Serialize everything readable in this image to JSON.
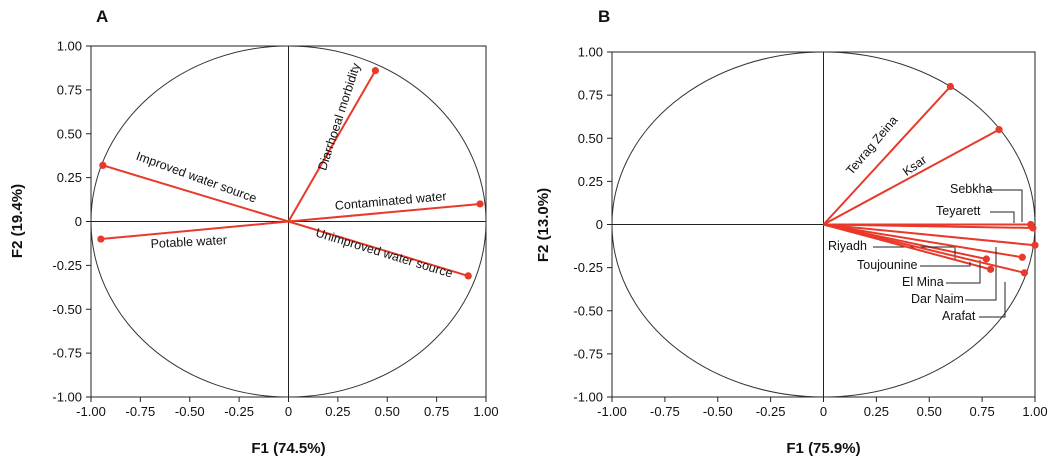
{
  "colors": {
    "vector": "#e8392b",
    "axis": "#222222",
    "circle": "#333333"
  },
  "chart_data": [
    {
      "type": "scatter",
      "panel": "A",
      "xlabel": "F1 (74.5%)",
      "ylabel": "F2 (19.4%)",
      "xlim": [
        -1,
        1
      ],
      "ylim": [
        -1,
        1
      ],
      "xticks": [
        "-1.00",
        "-0.75",
        "-0.50",
        "-0.25",
        "0",
        "0.25",
        "0.50",
        "0.75",
        "1.00"
      ],
      "yticks": [
        "1.00",
        "0.75",
        "0.50",
        "0.25",
        "0",
        "-0.25",
        "-0.50",
        "-0.75",
        "-1.00"
      ],
      "correlation_circle": true,
      "vectors": [
        {
          "label": "Diarrhoeal morbidity",
          "x": 0.44,
          "y": 0.86
        },
        {
          "label": "Improved water source",
          "x": -0.94,
          "y": 0.32
        },
        {
          "label": "Contaminated water",
          "x": 0.97,
          "y": 0.1
        },
        {
          "label": "Potable water",
          "x": -0.95,
          "y": -0.1
        },
        {
          "label": "Unimproved water source",
          "x": 0.91,
          "y": -0.31
        }
      ]
    },
    {
      "type": "scatter",
      "panel": "B",
      "xlabel": "F1 (75.9%)",
      "ylabel": "F2 (13.0%)",
      "xlim": [
        -1,
        1
      ],
      "ylim": [
        -1,
        1
      ],
      "xticks": [
        "-1.00",
        "-0.75",
        "-0.50",
        "-0.25",
        "0",
        "0.25",
        "0.50",
        "0.75",
        "1.00"
      ],
      "yticks": [
        "1.00",
        "0.75",
        "0.50",
        "0.25",
        "0",
        "-0.25",
        "-0.50",
        "-0.75",
        "-1.00"
      ],
      "correlation_circle": true,
      "vectors": [
        {
          "label": "Tevrag Zeina",
          "x": 0.6,
          "y": 0.8
        },
        {
          "label": "Ksar",
          "x": 0.83,
          "y": 0.55
        },
        {
          "label": "Sebkha",
          "x": 0.98,
          "y": 0.0
        },
        {
          "label": "Teyarett",
          "x": 0.99,
          "y": -0.02
        },
        {
          "label": "Riyadh",
          "x": 0.77,
          "y": -0.2
        },
        {
          "label": "Toujounine",
          "x": 0.79,
          "y": -0.26
        },
        {
          "label": "El Mina",
          "x": 0.94,
          "y": -0.19
        },
        {
          "label": "Dar Naim",
          "x": 1.0,
          "y": -0.12
        },
        {
          "label": "Arafat",
          "x": 0.95,
          "y": -0.28
        }
      ]
    }
  ]
}
